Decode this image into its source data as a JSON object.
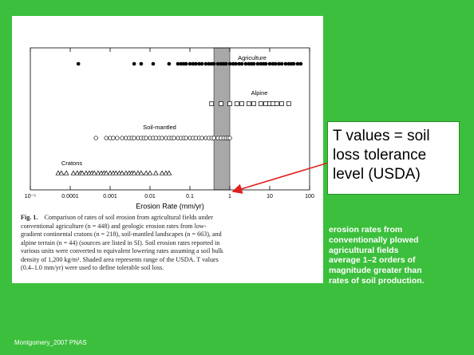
{
  "chart_data": {
    "type": "strip",
    "x_label": "Erosion Rate (mm/yr)",
    "xlog": true,
    "xlim": [
      1e-05,
      100
    ],
    "xticks": [
      {
        "value": 1e-05,
        "label": "10⁻⁵"
      },
      0.0001,
      0.001,
      0.01,
      0.1,
      1,
      10,
      100
    ],
    "shaded_range": [
      0.4,
      1.0
    ],
    "series": [
      {
        "name": "Agriculture",
        "marker": "filled-circle",
        "color": "#000000",
        "values": [
          0.00016,
          0.004,
          0.006,
          0.012,
          0.03,
          0.05,
          0.06,
          0.07,
          0.08,
          0.1,
          0.12,
          0.14,
          0.17,
          0.2,
          0.25,
          0.3,
          0.35,
          0.4,
          0.5,
          0.6,
          0.7,
          0.8,
          1,
          1.2,
          1.4,
          1.7,
          2,
          2.5,
          3,
          3.5,
          4,
          5,
          6,
          7,
          8,
          10,
          12,
          14,
          17,
          20,
          25,
          30,
          35,
          40,
          50,
          60
        ]
      },
      {
        "name": "Alpine",
        "marker": "open-square",
        "color": "#000000",
        "values": [
          0.35,
          0.6,
          1,
          1.5,
          2,
          3,
          4,
          6,
          8,
          10,
          12,
          15,
          20,
          30
        ]
      },
      {
        "name": "Soil-mantled",
        "marker": "open-circle",
        "color": "#000000",
        "values": [
          0.00044,
          0.0008,
          0.001,
          0.0012,
          0.0015,
          0.002,
          0.0025,
          0.003,
          0.0035,
          0.004,
          0.005,
          0.006,
          0.007,
          0.008,
          0.01,
          0.012,
          0.014,
          0.017,
          0.02,
          0.025,
          0.03,
          0.035,
          0.04,
          0.05,
          0.06,
          0.07,
          0.08,
          0.1,
          0.12,
          0.14,
          0.17,
          0.2,
          0.25,
          0.3,
          0.35,
          0.4,
          0.5,
          0.6,
          0.7,
          0.8,
          0.9,
          1
        ]
      },
      {
        "name": "Cratons",
        "marker": "open-triangle",
        "color": "#000000",
        "values": [
          5e-05,
          6e-05,
          8e-05,
          0.00012,
          0.00015,
          0.00018,
          0.0002,
          0.00025,
          0.0003,
          0.00035,
          0.0004,
          0.0005,
          0.0006,
          0.0007,
          0.0008,
          0.001,
          0.0012,
          0.0014,
          0.0017,
          0.002,
          0.0025,
          0.003,
          0.0035,
          0.004,
          0.005,
          0.006,
          0.008,
          0.01,
          0.014,
          0.02,
          0.025,
          0.03
        ]
      }
    ]
  },
  "caption_label": "Fig. 1.",
  "caption_lines": [
    "Comparison of rates of soil erosion from agricultural fields under",
    "conventional agriculture (n = 448) and geologic erosion rates from low-",
    "gradient continental cratons (n = 218), soil-mantled landscapes (n = 663), and",
    "alpine terrain (n = 44) (sources are listed in SI). Soil erosion rates reported in",
    "various units were converted to equivalent lowering rates assuming a soil bulk",
    "density of 1,200 kg/m³. Shaded area represents range of the USDA. T values",
    "(0.4–1.0 mm/yr) were used to define tolerable soil loss."
  ],
  "callout_lines": [
    "T values = soil",
    "loss tolerance",
    "level (USDA)"
  ],
  "note_lines": [
    "erosion rates from",
    "conventionally plowed",
    "agricultural fields",
    "average 1–2 orders of",
    "magnitude greater than",
    "rates of soil production."
  ],
  "footer": "Montgomery_2007 PNAS"
}
